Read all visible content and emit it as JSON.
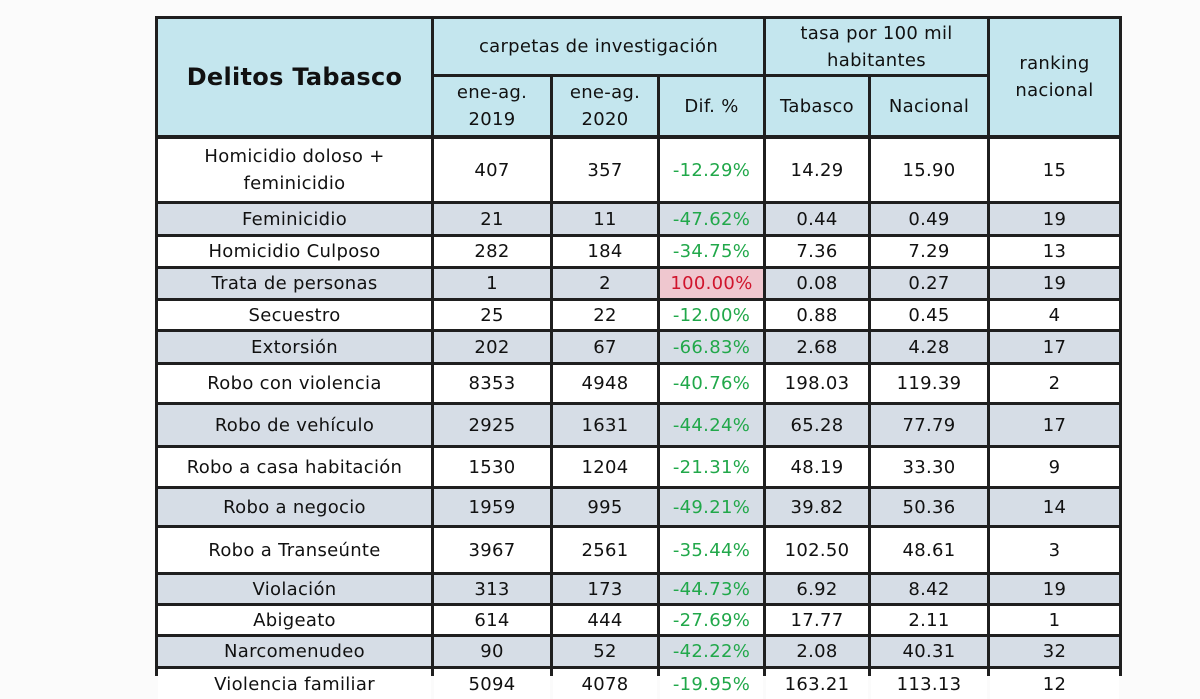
{
  "table": {
    "title": "Delitos Tabasco",
    "group_carpetas": "carpetas de investigación",
    "group_tasa": "tasa por 100 mil\nhabitantes",
    "group_ranking": "ranking\nnacional",
    "col_2019": "ene-ag.\n2019",
    "col_2020": "ene-ag.\n2020",
    "col_dif": "Dif. %",
    "col_tabasco": "Tabasco",
    "col_nacional": "Nacional",
    "rows": [
      {
        "delito": "Homicidio doloso +\nfeminicidio",
        "y2019": "407",
        "y2020": "357",
        "dif": "-12.29%",
        "tabasco": "14.29",
        "nacional": "15.90",
        "ranking": "15"
      },
      {
        "delito": "Feminicidio",
        "y2019": "21",
        "y2020": "11",
        "dif": "-47.62%",
        "tabasco": "0.44",
        "nacional": "0.49",
        "ranking": "19"
      },
      {
        "delito": "Homicidio Culposo",
        "y2019": "282",
        "y2020": "184",
        "dif": "-34.75%",
        "tabasco": "7.36",
        "nacional": "7.29",
        "ranking": "13"
      },
      {
        "delito": "Trata de personas",
        "y2019": "1",
        "y2020": "2",
        "dif": "100.00%",
        "tabasco": "0.08",
        "nacional": "0.27",
        "ranking": "19"
      },
      {
        "delito": "Secuestro",
        "y2019": "25",
        "y2020": "22",
        "dif": "-12.00%",
        "tabasco": "0.88",
        "nacional": "0.45",
        "ranking": "4"
      },
      {
        "delito": "Extorsión",
        "y2019": "202",
        "y2020": "67",
        "dif": "-66.83%",
        "tabasco": "2.68",
        "nacional": "4.28",
        "ranking": "17"
      },
      {
        "delito": "Robo con violencia",
        "y2019": "8353",
        "y2020": "4948",
        "dif": "-40.76%",
        "tabasco": "198.03",
        "nacional": "119.39",
        "ranking": "2"
      },
      {
        "delito": "Robo de vehículo",
        "y2019": "2925",
        "y2020": "1631",
        "dif": "-44.24%",
        "tabasco": "65.28",
        "nacional": "77.79",
        "ranking": "17"
      },
      {
        "delito": "Robo a casa habitación",
        "y2019": "1530",
        "y2020": "1204",
        "dif": "-21.31%",
        "tabasco": "48.19",
        "nacional": "33.30",
        "ranking": "9"
      },
      {
        "delito": "Robo a negocio",
        "y2019": "1959",
        "y2020": "995",
        "dif": "-49.21%",
        "tabasco": "39.82",
        "nacional": "50.36",
        "ranking": "14"
      },
      {
        "delito": "Robo a Transeúnte",
        "y2019": "3967",
        "y2020": "2561",
        "dif": "-35.44%",
        "tabasco": "102.50",
        "nacional": "48.61",
        "ranking": "3"
      },
      {
        "delito": "Violación",
        "y2019": "313",
        "y2020": "173",
        "dif": "-44.73%",
        "tabasco": "6.92",
        "nacional": "8.42",
        "ranking": "19"
      },
      {
        "delito": "Abigeato",
        "y2019": "614",
        "y2020": "444",
        "dif": "-27.69%",
        "tabasco": "17.77",
        "nacional": "2.11",
        "ranking": "1"
      },
      {
        "delito": "Narcomenudeo",
        "y2019": "90",
        "y2020": "52",
        "dif": "-42.22%",
        "tabasco": "2.08",
        "nacional": "40.31",
        "ranking": "32"
      },
      {
        "delito": "Violencia familiar",
        "y2019": "5094",
        "y2020": "4078",
        "dif": "-19.95%",
        "tabasco": "163.21",
        "nacional": "113.13",
        "ranking": "12"
      }
    ]
  },
  "colors": {
    "header_bg": "#c4e6ee",
    "row_white": "#ffffff",
    "row_shaded": "#d6dde6",
    "negative_text": "#21a84a",
    "positive_text": "#d0142c",
    "positive_bg": "#efc7cf"
  }
}
